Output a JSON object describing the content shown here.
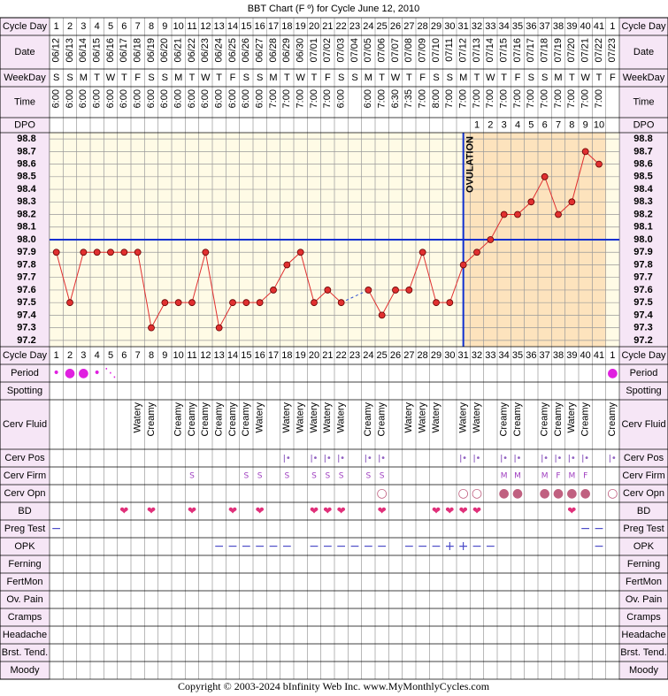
{
  "title": "BBT Chart (F º) for Cycle June 12, 2010",
  "row_labels": [
    "Cycle Day",
    "Date",
    "WeekDay",
    "Time",
    "DPO",
    "Cycle Day",
    "Period",
    "Spotting",
    "Cerv Fluid",
    "Cerv Pos",
    "Cerv Firm",
    "Cerv Opn",
    "BD",
    "Preg Test",
    "OPK",
    "Ferning",
    "FertMon",
    "Ov. Pain",
    "Cramps",
    "Headache",
    "Brst. Tend.",
    "Moody"
  ],
  "chart_data": {
    "type": "line",
    "categories": [
      "06/12",
      "06/13",
      "06/14",
      "06/15",
      "06/16",
      "06/17",
      "06/18",
      "06/19",
      "06/20",
      "06/21",
      "06/22",
      "06/23",
      "06/24",
      "06/25",
      "06/26",
      "06/27",
      "06/28",
      "06/29",
      "06/30",
      "07/01",
      "07/02",
      "07/03",
      "07/04",
      "07/05",
      "07/06",
      "07/07",
      "07/08",
      "07/09",
      "07/10",
      "07/11",
      "07/12",
      "07/13",
      "07/14",
      "07/15",
      "07/16",
      "07/17",
      "07/18",
      "07/19",
      "07/20",
      "07/21",
      "07/22",
      "07/23"
    ],
    "cycle_days": [
      1,
      2,
      3,
      4,
      5,
      6,
      7,
      8,
      9,
      10,
      11,
      12,
      13,
      14,
      15,
      16,
      17,
      18,
      19,
      20,
      21,
      22,
      23,
      24,
      25,
      26,
      27,
      28,
      29,
      30,
      31,
      32,
      33,
      34,
      35,
      36,
      37,
      38,
      39,
      40,
      41,
      1
    ],
    "weekdays": [
      "S",
      "S",
      "M",
      "T",
      "W",
      "T",
      "F",
      "S",
      "S",
      "M",
      "T",
      "W",
      "T",
      "F",
      "S",
      "S",
      "M",
      "T",
      "W",
      "T",
      "F",
      "S",
      "S",
      "M",
      "T",
      "W",
      "T",
      "F",
      "S",
      "S",
      "M",
      "T",
      "W",
      "T",
      "F",
      "S",
      "S",
      "M",
      "T",
      "W",
      "T",
      "F"
    ],
    "times": [
      "6:00",
      "6:00",
      "6:00",
      "6:00",
      "6:00",
      "6:00",
      "6:00",
      "6:00",
      "6:00",
      "6:00",
      "6:00",
      "6:00",
      "6:00",
      "6:00",
      "6:00",
      "6:00",
      "7:00",
      "7:00",
      "7:00",
      "7:00",
      "7:00",
      "6:00",
      null,
      "6:00",
      "7:00",
      "6:30",
      "7:35",
      "7:00",
      "8:00",
      "7:00",
      "7:00",
      "7:00",
      "7:00",
      "7:00",
      "7:00",
      "7:00",
      "7:00",
      "7:00",
      "7:00",
      "7:00",
      "7:00",
      null
    ],
    "dpo": [
      null,
      null,
      null,
      null,
      null,
      null,
      null,
      null,
      null,
      null,
      null,
      null,
      null,
      null,
      null,
      null,
      null,
      null,
      null,
      null,
      null,
      null,
      null,
      null,
      null,
      null,
      null,
      null,
      null,
      null,
      null,
      1,
      2,
      3,
      4,
      5,
      6,
      7,
      8,
      9,
      10,
      null
    ],
    "values": [
      97.9,
      97.5,
      97.9,
      97.9,
      97.9,
      97.9,
      97.9,
      97.3,
      97.5,
      97.5,
      97.5,
      97.9,
      97.3,
      97.5,
      97.5,
      97.5,
      97.6,
      97.8,
      97.9,
      97.5,
      97.6,
      97.5,
      null,
      97.6,
      97.4,
      97.6,
      97.6,
      97.9,
      97.5,
      97.5,
      97.8,
      97.9,
      98.0,
      98.2,
      98.2,
      98.3,
      98.5,
      98.2,
      98.3,
      98.7,
      98.6,
      null
    ],
    "color": "#e03030",
    "ylim": [
      97.15,
      98.85
    ],
    "yticks": [
      98.8,
      98.7,
      98.6,
      98.5,
      98.4,
      98.3,
      98.2,
      98.1,
      {
        "value": 98,
        "label": "98.0"
      },
      97.9,
      97.8,
      97.7,
      97.6,
      97.5,
      97.4,
      97.3,
      97.2
    ],
    "coverline": 98,
    "ovulation": {
      "label": "OVULATION",
      "cycle_day": 31
    }
  },
  "observations": {
    "period": [
      "•",
      "●",
      "●",
      "•",
      "⋱",
      null,
      null,
      null,
      null,
      null,
      null,
      null,
      null,
      null,
      null,
      null,
      null,
      null,
      null,
      null,
      null,
      null,
      null,
      null,
      null,
      null,
      null,
      null,
      null,
      null,
      null,
      null,
      null,
      null,
      null,
      null,
      null,
      null,
      null,
      null,
      null,
      "●"
    ],
    "cerv_fluid": [
      null,
      null,
      null,
      null,
      null,
      null,
      "Watery",
      "Creamy",
      null,
      "Creamy",
      "Creamy",
      "Creamy",
      "Creamy",
      "Creamy",
      "Creamy",
      "Watery",
      null,
      "Watery",
      "Watery",
      "Watery",
      "Watery",
      "Watery",
      null,
      "Creamy",
      "Creamy",
      null,
      "Watery",
      "Watery",
      "Watery",
      null,
      "Watery",
      "Watery",
      null,
      "Creamy",
      "Creamy",
      null,
      "Creamy",
      "Creamy",
      "Watery",
      "Creamy",
      null,
      "Creamy"
    ],
    "cerv_pos": [
      null,
      null,
      null,
      null,
      null,
      null,
      null,
      null,
      null,
      null,
      null,
      null,
      null,
      null,
      null,
      null,
      null,
      "ǀ•",
      null,
      "ǀ•",
      "ǀ•",
      "ǀ•",
      null,
      "ǀ•",
      "ǀ•",
      null,
      null,
      null,
      null,
      null,
      "ǀ•",
      "ǀ•",
      null,
      "ǀ•",
      "ǀ•",
      null,
      "ǀ•",
      "ǀ•",
      "ǀ•",
      "ǀ•",
      null,
      "ǀ•"
    ],
    "cerv_firm": [
      null,
      null,
      null,
      null,
      null,
      null,
      null,
      null,
      null,
      null,
      "S",
      null,
      null,
      null,
      "S",
      "S",
      null,
      "S",
      null,
      "S",
      "S",
      "S",
      null,
      "S",
      "S",
      null,
      null,
      null,
      null,
      null,
      null,
      null,
      null,
      "M",
      "M",
      null,
      "M",
      "F",
      "M",
      "F",
      null,
      null
    ],
    "cerv_opn": [
      null,
      null,
      null,
      null,
      null,
      null,
      null,
      null,
      null,
      null,
      null,
      null,
      null,
      null,
      null,
      null,
      null,
      null,
      null,
      null,
      null,
      null,
      null,
      null,
      "○",
      null,
      null,
      null,
      null,
      null,
      "○",
      "○",
      null,
      "●",
      "●",
      null,
      "●",
      "●",
      "●",
      "●",
      null,
      "○"
    ],
    "bd": [
      null,
      null,
      null,
      null,
      null,
      "❤",
      null,
      "❤",
      null,
      null,
      "❤",
      null,
      null,
      "❤",
      null,
      "❤",
      null,
      null,
      null,
      "❤",
      "❤",
      "❤",
      null,
      null,
      "❤",
      null,
      null,
      null,
      "❤",
      "❤",
      "❤",
      "❤",
      null,
      null,
      null,
      null,
      null,
      null,
      "❤",
      null,
      null,
      null
    ],
    "preg_test": [
      "−",
      null,
      null,
      null,
      null,
      null,
      null,
      null,
      null,
      null,
      null,
      null,
      null,
      null,
      null,
      null,
      null,
      null,
      null,
      null,
      null,
      null,
      null,
      null,
      null,
      null,
      null,
      null,
      null,
      null,
      null,
      null,
      null,
      null,
      null,
      null,
      null,
      null,
      null,
      "−",
      "−",
      null
    ],
    "opk": [
      null,
      null,
      null,
      null,
      null,
      null,
      null,
      null,
      null,
      null,
      null,
      null,
      "−",
      "−",
      "−",
      "−",
      "−",
      "−",
      null,
      "−",
      "−",
      "−",
      "−",
      "−",
      "−",
      null,
      "−",
      "−",
      "−",
      "+",
      "+",
      "−",
      "−",
      null,
      null,
      null,
      null,
      null,
      null,
      null,
      "−",
      null
    ]
  },
  "copyright": "Copyright © 2003-2024 bInfinity Web Inc.     www.MyMonthlyCycles.com"
}
